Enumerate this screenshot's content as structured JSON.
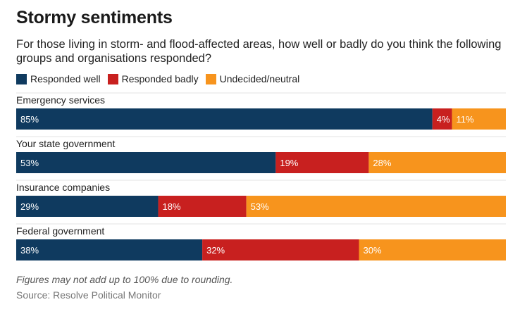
{
  "header": {
    "title": "Stormy sentiments",
    "subtitle": "For those living in storm- and flood-affected areas, how well or badly do you think the following groups and organisations responded?"
  },
  "footer": {
    "note": "Figures may not add up to 100% due to rounding.",
    "source": "Source: Resolve Political Monitor"
  },
  "chart_data": {
    "type": "bar",
    "orientation": "horizontal",
    "stacked": true,
    "categories": [
      "Emergency services",
      "Your state government",
      "Insurance companies",
      "Federal government"
    ],
    "series": [
      {
        "name": "Responded well",
        "color": "#0f3a5f",
        "values": [
          85,
          53,
          29,
          38
        ],
        "labels": [
          "85%",
          "53%",
          "29%",
          "38%"
        ]
      },
      {
        "name": "Responded badly",
        "color": "#c8201f",
        "values": [
          4,
          19,
          18,
          32
        ],
        "labels": [
          "4%",
          "19%",
          "18%",
          "32%"
        ]
      },
      {
        "name": "Undecided/neutral",
        "color": "#f7941d",
        "values": [
          11,
          28,
          53,
          30
        ],
        "labels": [
          "11%",
          "28%",
          "53%",
          "30%"
        ]
      }
    ],
    "xlim": [
      0,
      100
    ],
    "legend_position": "top-left",
    "grid": false
  }
}
